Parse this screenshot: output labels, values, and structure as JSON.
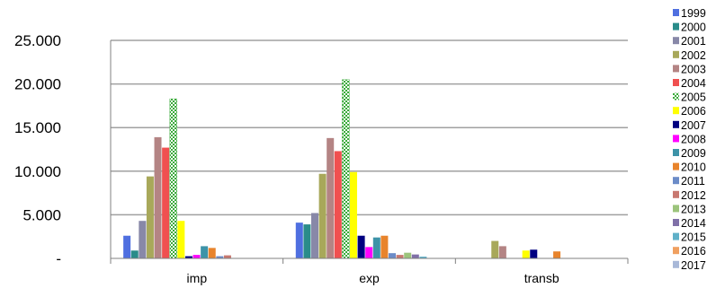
{
  "chart_data": {
    "type": "bar",
    "categories": [
      "imp",
      "exp",
      "transb"
    ],
    "ylim": [
      0,
      25000
    ],
    "yticks": [
      {
        "value": 0,
        "label": "-"
      },
      {
        "value": 5000,
        "label": "5.000"
      },
      {
        "value": 10000,
        "label": "10.000"
      },
      {
        "value": 15000,
        "label": "15.000"
      },
      {
        "value": 20000,
        "label": "20.000"
      },
      {
        "value": 25000,
        "label": "25.000"
      }
    ],
    "grid": true,
    "legend_position": "right",
    "series": [
      {
        "name": "1999",
        "color": "#4f6fe0",
        "values": [
          2600,
          4100,
          0
        ]
      },
      {
        "name": "2000",
        "color": "#2a8c8a",
        "values": [
          900,
          3900,
          0
        ]
      },
      {
        "name": "2001",
        "color": "#8888a8",
        "values": [
          4300,
          5200,
          0
        ]
      },
      {
        "name": "2002",
        "color": "#a8a85a",
        "values": [
          9400,
          9700,
          2000
        ]
      },
      {
        "name": "2003",
        "color": "#b48484",
        "values": [
          13900,
          13800,
          1400
        ]
      },
      {
        "name": "2004",
        "color": "#f05050",
        "values": [
          12700,
          12300,
          0
        ]
      },
      {
        "name": "2005",
        "color": "#5cc55c",
        "pattern": "checker",
        "values": [
          18300,
          20500,
          0
        ]
      },
      {
        "name": "2006",
        "color": "#ffff00",
        "values": [
          4300,
          9900,
          900
        ]
      },
      {
        "name": "2007",
        "color": "#000080",
        "values": [
          250,
          2600,
          1000
        ]
      },
      {
        "name": "2008",
        "color": "#ff00ff",
        "values": [
          400,
          1300,
          0
        ]
      },
      {
        "name": "2009",
        "color": "#3d93a8",
        "values": [
          1400,
          2400,
          0
        ]
      },
      {
        "name": "2010",
        "color": "#e8842c",
        "values": [
          1200,
          2600,
          800
        ]
      },
      {
        "name": "2011",
        "color": "#6c8cc8",
        "values": [
          250,
          600,
          0
        ]
      },
      {
        "name": "2012",
        "color": "#c87870",
        "values": [
          350,
          400,
          0
        ]
      },
      {
        "name": "2013",
        "color": "#9cc47c",
        "values": [
          0,
          650,
          0
        ]
      },
      {
        "name": "2014",
        "color": "#8070a8",
        "values": [
          0,
          450,
          0
        ]
      },
      {
        "name": "2015",
        "color": "#60b0c8",
        "values": [
          0,
          200,
          0
        ]
      },
      {
        "name": "2016",
        "color": "#f0a060",
        "values": [
          0,
          0,
          0
        ]
      },
      {
        "name": "2017",
        "color": "#a8b8d8",
        "values": [
          0,
          0,
          0
        ]
      }
    ]
  }
}
